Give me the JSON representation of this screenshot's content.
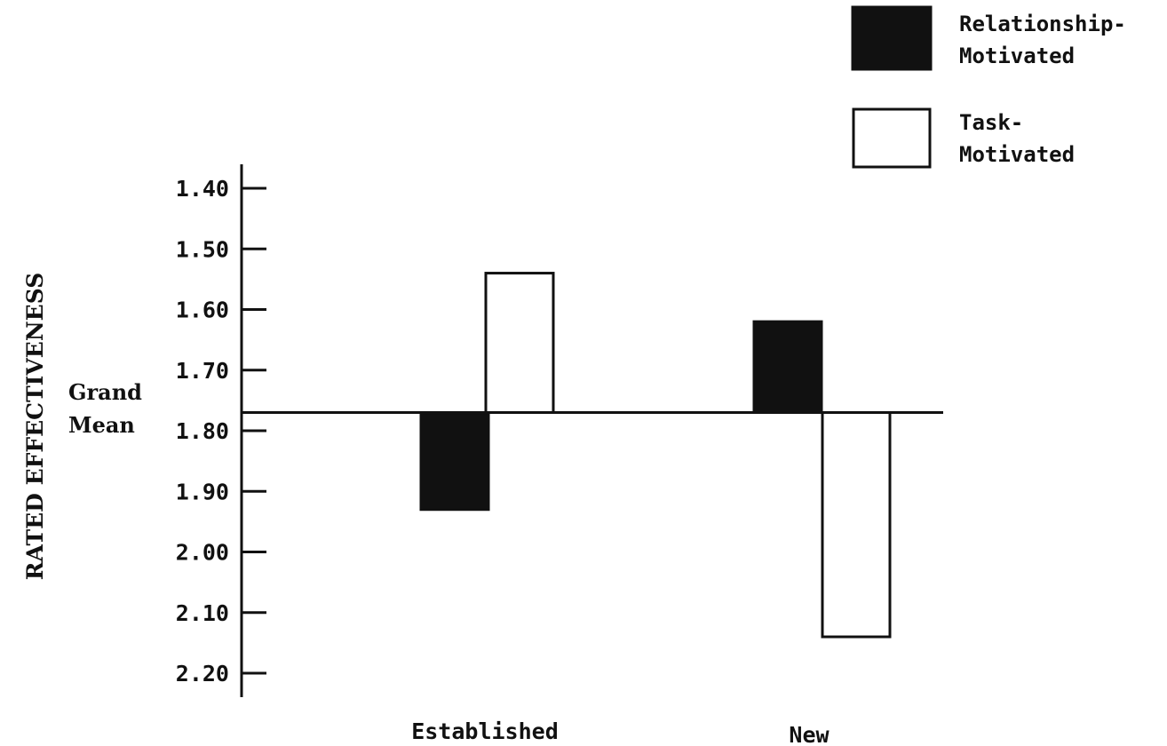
{
  "chart_data": {
    "type": "bar",
    "orientation": "vertical, bars drawn from grand mean reference line; y axis inverted",
    "categories": [
      "Established",
      "New"
    ],
    "series": [
      {
        "name": "Relationship-Motivated",
        "values": [
          1.93,
          1.62
        ],
        "color": "#111111",
        "fill": "solid"
      },
      {
        "name": "Task-Motivated",
        "values": [
          1.54,
          2.14
        ],
        "color": "#ffffff",
        "fill": "outline"
      }
    ],
    "reference_line": {
      "label_lines": [
        "Grand",
        "Mean"
      ],
      "value": 1.77
    },
    "ylabel": "RATED EFFECTIVENESS",
    "xlabel": "",
    "yticks": [
      "1.40",
      "1.50",
      "1.60",
      "1.70",
      "1.80",
      "1.90",
      "2.00",
      "2.10",
      "2.20"
    ],
    "ylim": [
      1.4,
      2.2
    ],
    "y_inverted": true,
    "grid": false,
    "legend": {
      "position": "top-right",
      "entries": [
        {
          "lines": [
            "Relationship-",
            "Motivated"
          ],
          "swatch": "solid"
        },
        {
          "lines": [
            "Task-",
            "Motivated"
          ],
          "swatch": "outline"
        }
      ]
    }
  }
}
